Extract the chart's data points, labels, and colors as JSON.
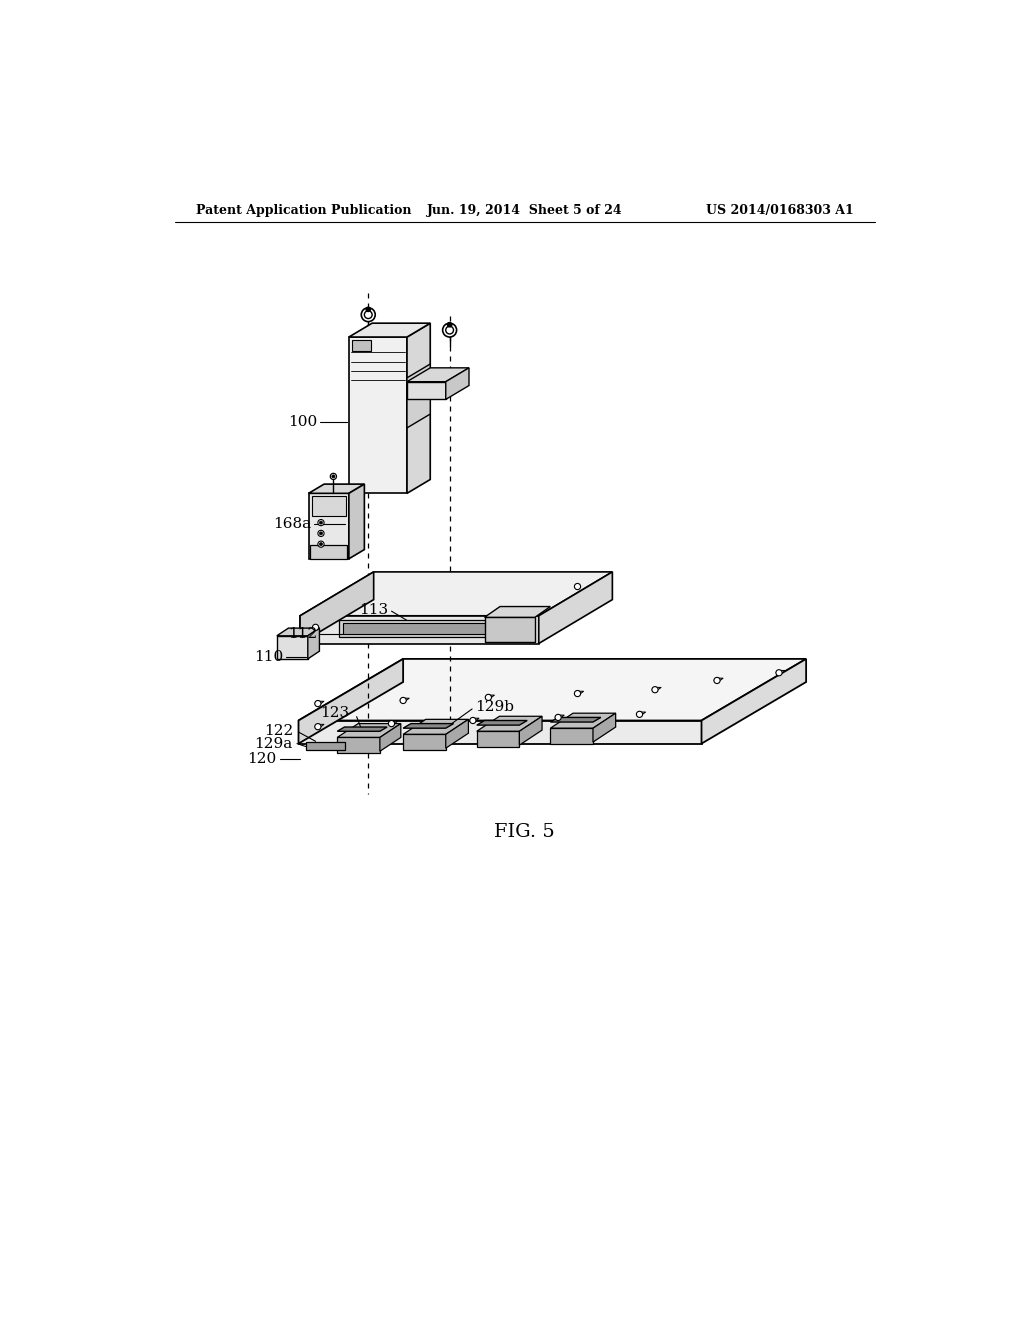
{
  "header_left": "Patent Application Publication",
  "header_center": "Jun. 19, 2014  Sheet 5 of 24",
  "header_right": "US 2014/0168303 A1",
  "caption": "FIG. 5",
  "background_color": "#ffffff"
}
